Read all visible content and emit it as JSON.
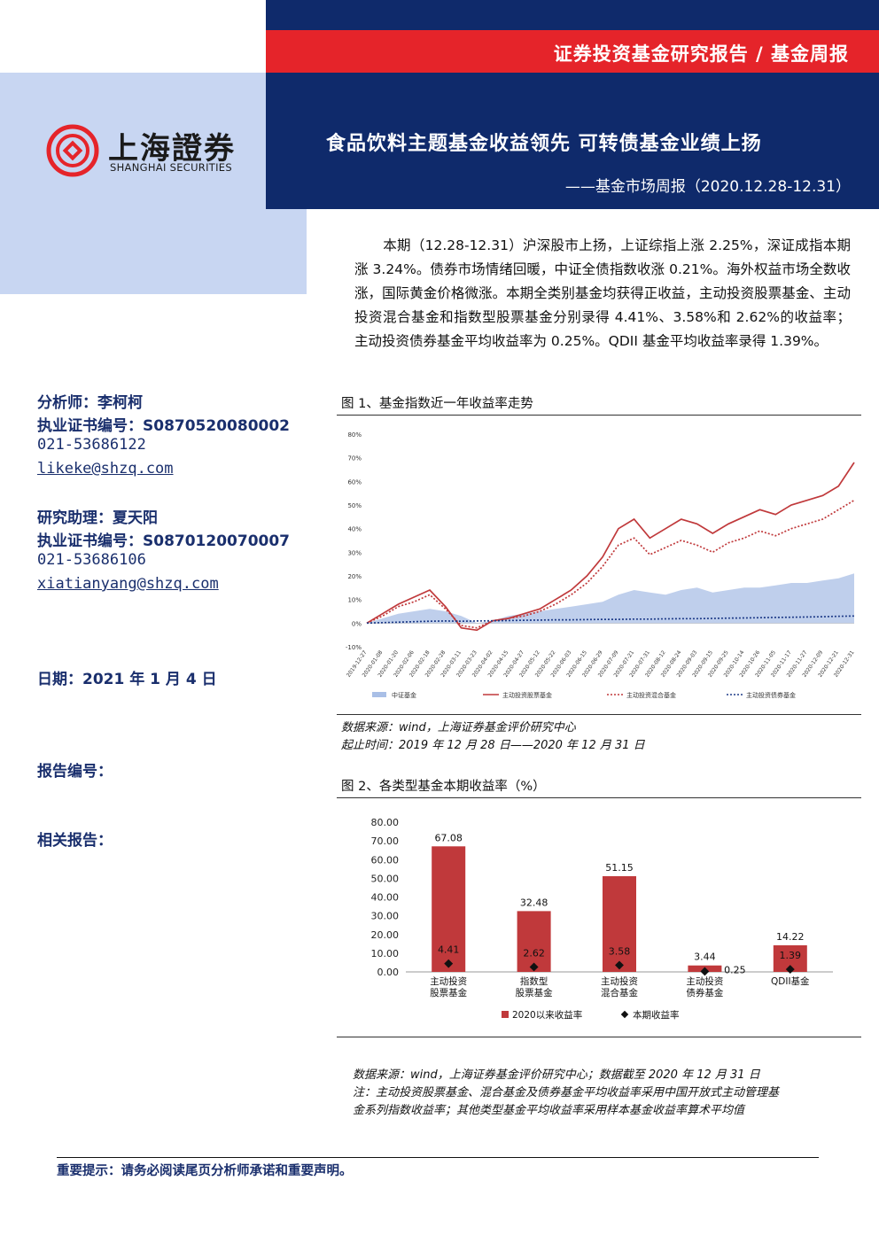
{
  "header": {
    "category": "证券投资基金研究报告 / 基金周报",
    "title": "食品饮料主题基金收益领先 可转债基金业绩上扬",
    "subtitle": "——基金市场周报（2020.12.28-12.31）",
    "logo_cn": "上海證券",
    "logo_en": "SHANGHAI SECURITIES",
    "colors": {
      "navy": "#0f2a6b",
      "red": "#e5242a",
      "light_blue": "#c8d6f2"
    }
  },
  "intro": "本期（12.28-12.31）沪深股市上扬，上证综指上涨 2.25%，深证成指本期涨 3.24%。债券市场情绪回暖，中证全债指数收涨 0.21%。海外权益市场全数收涨，国际黄金价格微涨。本期全类别基金均获得正收益，主动投资股票基金、主动投资混合基金和指数型股票基金分别录得 4.41%、3.58%和 2.62%的收益率；主动投资债券基金平均收益率为 0.25%。QDII 基金平均收益率录得 1.39%。",
  "analyst": {
    "name_line": "分析师：李柯柯",
    "cert_line": "执业证书编号：S0870520080002",
    "phone": "021-53686122",
    "email": "likeke@shzq.com"
  },
  "assistant": {
    "name_line": "研究助理：夏天阳",
    "cert_line": "执业证书编号：S0870120070007",
    "phone": "021-53686106",
    "email": "xiatianyang@shzq.com"
  },
  "date_line": "日期：2021 年 1 月 4 日",
  "report_no": "报告编号：",
  "related": "相关报告：",
  "figure1": {
    "caption": "图 1、基金指数近一年收益率走势",
    "source": "数据来源：wind，上海证券基金评价研究中心",
    "period": "起止时间：2019 年 12 月 28 日——2020 年 12 月 31 日"
  },
  "figure2": {
    "caption": "图 2、各类型基金本期收益率（%）",
    "source": "数据来源：wind，上海证券基金评价研究中心；数据截至 2020 年 12 月 31 日",
    "note1": "注：主动投资股票基金、混合基金及债券基金平均收益率采用中国开放式主动管理基",
    "note2": "金系列指数收益率；其他类型基金平均收益率采用样本基金收益率算术平均值"
  },
  "footer": "重要提示：请务必阅读尾页分析师承诺和重要声明。",
  "chart_data": [
    {
      "type": "line",
      "ylim": [
        -10,
        80
      ],
      "y_ticks": [
        "-10%",
        "0%",
        "10%",
        "20%",
        "30%",
        "40%",
        "50%",
        "60%",
        "70%",
        "80%"
      ],
      "x_ticks": [
        "2019-12-27",
        "2020-01-08",
        "2020-01-20",
        "2020-02-06",
        "2020-02-18",
        "2020-02-28",
        "2020-03-11",
        "2020-03-23",
        "2020-04-02",
        "2020-04-15",
        "2020-04-27",
        "2020-05-12",
        "2020-05-22",
        "2020-06-03",
        "2020-06-15",
        "2020-06-29",
        "2020-07-09",
        "2020-07-21",
        "2020-07-31",
        "2020-08-12",
        "2020-08-24",
        "2020-09-03",
        "2020-09-15",
        "2020-09-25",
        "2020-10-14",
        "2020-10-26",
        "2020-11-05",
        "2020-11-17",
        "2020-11-27",
        "2020-12-09",
        "2020-12-21",
        "2020-12-31"
      ],
      "legend": [
        "中证基金",
        "主动投资股票基金",
        "主动投资混合基金",
        "主动投资债券基金"
      ],
      "legend_position": "bottom",
      "series": [
        {
          "name": "中证基金",
          "style": "area",
          "color": "#a9bfe6",
          "values": [
            0,
            2,
            4,
            5,
            6,
            5,
            3,
            0,
            1,
            3,
            4,
            5,
            6,
            7,
            8,
            9,
            12,
            14,
            13,
            12,
            14,
            15,
            13,
            14,
            15,
            15,
            16,
            17,
            17,
            18,
            19,
            21
          ]
        },
        {
          "name": "主动投资股票基金",
          "style": "solid",
          "color": "#c0393b",
          "values": [
            0,
            4,
            8,
            11,
            14,
            7,
            -2,
            -3,
            1,
            2,
            4,
            6,
            10,
            14,
            20,
            28,
            40,
            44,
            36,
            40,
            44,
            42,
            38,
            42,
            45,
            48,
            46,
            50,
            52,
            54,
            58,
            68
          ]
        },
        {
          "name": "主动投资混合基金",
          "style": "dotted",
          "color": "#c0393b",
          "values": [
            0,
            3,
            7,
            9,
            12,
            6,
            -1,
            -2,
            1,
            2,
            3,
            5,
            8,
            12,
            17,
            24,
            33,
            36,
            29,
            32,
            35,
            33,
            30,
            34,
            36,
            39,
            37,
            40,
            42,
            44,
            48,
            52
          ]
        },
        {
          "name": "主动投资债券基金",
          "style": "dotted",
          "color": "#1f3c88",
          "values": [
            0,
            0.2,
            0.4,
            0.6,
            0.8,
            0.9,
            0.8,
            0.9,
            1.0,
            1.1,
            1.2,
            1.3,
            1.4,
            1.4,
            1.5,
            1.6,
            1.6,
            1.7,
            1.7,
            1.8,
            1.9,
            1.9,
            2.0,
            2.1,
            2.2,
            2.3,
            2.4,
            2.5,
            2.6,
            2.7,
            2.9,
            3.0
          ]
        }
      ]
    },
    {
      "type": "bar",
      "categories": [
        [
          "主动投资",
          "股票基金"
        ],
        [
          "指数型",
          "股票基金"
        ],
        [
          "主动投资",
          "混合基金"
        ],
        [
          "主动投资",
          "债券基金"
        ],
        [
          "QDII基金"
        ]
      ],
      "ylim": [
        0,
        80
      ],
      "y_ticks": [
        "0.00",
        "10.00",
        "20.00",
        "30.00",
        "40.00",
        "50.00",
        "60.00",
        "70.00",
        "80.00"
      ],
      "series": [
        {
          "name": "2020以来收益率",
          "style": "bar",
          "color": "#c0393b",
          "values": [
            67.08,
            32.48,
            51.15,
            3.44,
            14.22
          ],
          "labels": [
            "67.08",
            "32.48",
            "51.15",
            "3.44",
            "14.22"
          ]
        },
        {
          "name": "本期收益率",
          "style": "marker",
          "color": "#111111",
          "values": [
            4.41,
            2.62,
            3.58,
            0.25,
            1.39
          ],
          "labels": [
            "4.41",
            "2.62",
            "3.58",
            "0.25",
            "1.39"
          ]
        }
      ],
      "legend_position": "bottom"
    }
  ]
}
